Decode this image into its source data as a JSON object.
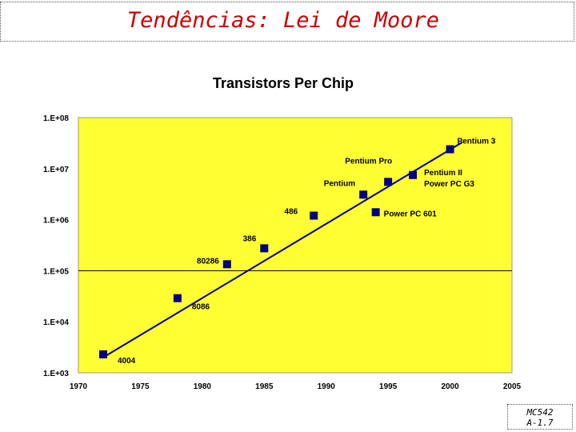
{
  "slide": {
    "title": "Tendências: Lei de Moore",
    "footer_line1": "MC542",
    "footer_line2": "A-1.7"
  },
  "colors": {
    "title": "#cc0000",
    "plot_background": "#ffff33",
    "marker": "#000080",
    "trend_line": "#000080"
  },
  "chart_data": {
    "type": "scatter",
    "title": "Transistors Per Chip",
    "xlabel": "",
    "ylabel": "",
    "xlim": [
      1970,
      2005
    ],
    "ylim": [
      1000,
      100000000
    ],
    "yscale": "log",
    "x_ticks": [
      "1970",
      "1975",
      "1980",
      "1985",
      "1990",
      "1995",
      "2000",
      "2005"
    ],
    "y_ticks": [
      "1.E+03",
      "1.E+04",
      "1.E+05",
      "1.E+06",
      "1.E+07",
      "1.E+08"
    ],
    "reference_line": 100000,
    "points": [
      {
        "label": "4004",
        "year": 1972,
        "value": 2300
      },
      {
        "label": "8086",
        "year": 1978,
        "value": 29000
      },
      {
        "label": "80286",
        "year": 1982,
        "value": 134000
      },
      {
        "label": "386",
        "year": 1985,
        "value": 275000
      },
      {
        "label": "486",
        "year": 1989,
        "value": 1200000
      },
      {
        "label": "Pentium",
        "year": 1993,
        "value": 3100000
      },
      {
        "label": "Power PC 601",
        "year": 1994,
        "value": 1400000
      },
      {
        "label": "Pentium Pro",
        "year": 1995,
        "value": 5500000
      },
      {
        "label": "Pentium II\nPower PC G3",
        "year": 1997,
        "value": 7500000
      },
      {
        "label": "Pentium 3",
        "year": 2000,
        "value": 24000000
      }
    ],
    "trend": {
      "start": {
        "year": 1972,
        "value": 2000
      },
      "end": {
        "year": 2001,
        "value": 33000000
      }
    }
  }
}
